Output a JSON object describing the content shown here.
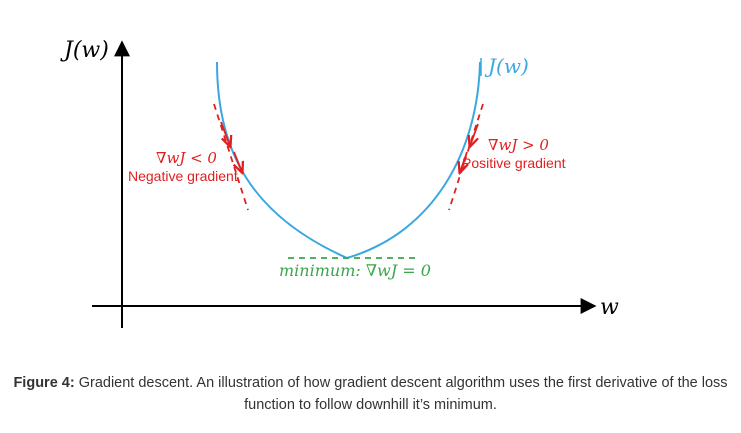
{
  "colors": {
    "axis": "#000000",
    "curve": "#3aa8e0",
    "tangent": "#e02020",
    "minimum": "#3aa64a",
    "caption": "#333333"
  },
  "axes": {
    "y_label": "J(w)",
    "x_label": "w"
  },
  "curve_label": "J(w)",
  "left_annotation": {
    "formula": "∇wJ < 0",
    "text": "Negative gradient"
  },
  "right_annotation": {
    "formula": "∇wJ > 0",
    "text": "Positive gradient"
  },
  "minimum_annotation": {
    "formula": "minimum: ∇wJ = 0"
  },
  "caption": {
    "label": "Figure 4:",
    "text": "Gradient descent. An illustration of how gradient descent algorithm uses the first derivative of the loss function to follow downhill it’s minimum."
  }
}
